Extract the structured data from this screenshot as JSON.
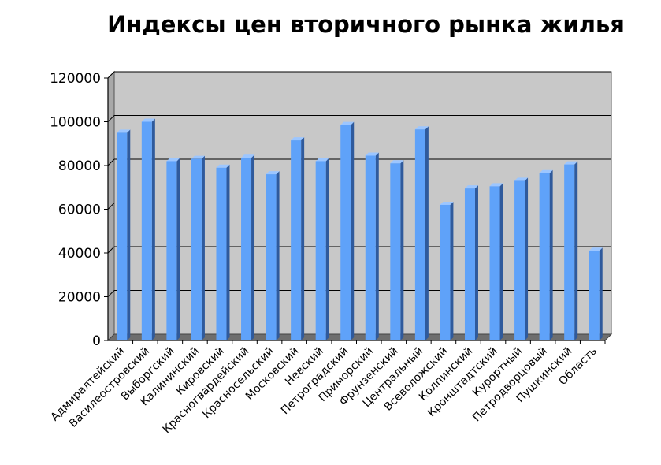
{
  "chart_data": {
    "type": "bar",
    "title": "Индексы цен вторичного рынка жилья",
    "xlabel": "",
    "ylabel": "",
    "ylim": [
      0,
      120000
    ],
    "yticks": [
      "0",
      "20000",
      "40000",
      "60000",
      "80000",
      "100000",
      "120000"
    ],
    "grid": true,
    "legend": "none",
    "categories": [
      "Адмиралтейский",
      "Василеостровский",
      "Выборгский",
      "Калининский",
      "Кировский",
      "Красногвардейский",
      "Красносельский",
      "Московский",
      "Невский",
      "Петроградский",
      "Приморский",
      "Фрунзенский",
      "Центральный",
      "Всеволожский",
      "Колпинский",
      "Кронштадтский",
      "Курортный",
      "Петродворцовый",
      "Пушкинский",
      "Область"
    ],
    "values": [
      95000,
      100000,
      82000,
      83000,
      79000,
      83500,
      76000,
      91500,
      82000,
      98500,
      84500,
      81000,
      96500,
      62000,
      69500,
      70500,
      73000,
      76500,
      80500,
      41000
    ],
    "colors": {
      "bar": "#5fa2f9",
      "bar_side": "#2f5a9c",
      "bar_top": "#9cc6ff",
      "plot_bg": "#c8c8c8",
      "floor": "#6e6e6e",
      "grid": "#000000"
    }
  }
}
